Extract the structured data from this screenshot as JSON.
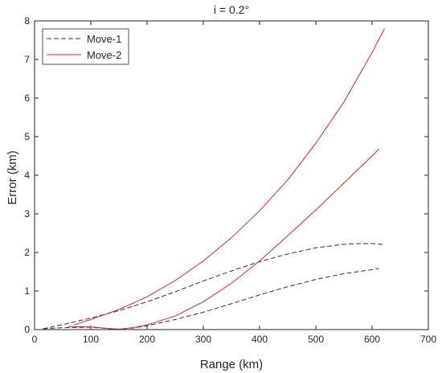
{
  "chart_data": {
    "type": "line",
    "title": "i = 0.2°",
    "xlabel": "Range (km)",
    "ylabel": "Error (km)",
    "xlim": [
      0,
      700
    ],
    "ylim": [
      0,
      8
    ],
    "xticks": [
      0,
      100,
      200,
      300,
      400,
      500,
      600,
      700
    ],
    "yticks": [
      0,
      1,
      2,
      3,
      4,
      5,
      6,
      7,
      8
    ],
    "grid": false,
    "legend_position": "top-left",
    "legend": [
      {
        "label": "Move-1",
        "color": "#333333",
        "style": "dashed"
      },
      {
        "label": "Move-2",
        "color": "#e8211e",
        "style": "solid"
      }
    ],
    "series": [
      {
        "name": "Move-1",
        "group": "upper",
        "color": "#333333",
        "style": "dashed",
        "x": [
          15,
          50,
          100,
          150,
          200,
          250,
          300,
          350,
          400,
          450,
          500,
          550,
          580,
          600,
          622
        ],
        "y": [
          0.02,
          0.13,
          0.3,
          0.49,
          0.72,
          0.98,
          1.26,
          1.52,
          1.76,
          1.96,
          2.12,
          2.21,
          2.23,
          2.23,
          2.2
        ]
      },
      {
        "name": "Move-1",
        "group": "lower",
        "color": "#333333",
        "style": "dashed",
        "x": [
          15,
          50,
          100,
          130,
          150,
          175,
          200,
          250,
          300,
          350,
          400,
          450,
          500,
          550,
          612
        ],
        "y": [
          0.02,
          0.05,
          0.06,
          0.03,
          0.01,
          0.04,
          0.1,
          0.26,
          0.45,
          0.67,
          0.9,
          1.11,
          1.3,
          1.45,
          1.58
        ]
      },
      {
        "name": "Move-2",
        "group": "upper",
        "color": "#e8211e",
        "style": "solid",
        "x": [
          70,
          100,
          150,
          200,
          250,
          300,
          350,
          400,
          450,
          500,
          550,
          600,
          622
        ],
        "y": [
          0.12,
          0.26,
          0.52,
          0.85,
          1.27,
          1.78,
          2.38,
          3.08,
          3.88,
          4.83,
          5.9,
          7.18,
          7.8
        ]
      },
      {
        "name": "Move-2",
        "group": "lower",
        "color": "#e8211e",
        "style": "solid",
        "x": [
          60,
          100,
          130,
          150,
          175,
          200,
          250,
          300,
          350,
          400,
          450,
          500,
          550,
          600,
          612
        ],
        "y": [
          0.08,
          0.07,
          0.03,
          0.01,
          0.05,
          0.12,
          0.35,
          0.72,
          1.2,
          1.78,
          2.43,
          3.1,
          3.8,
          4.5,
          4.68
        ]
      }
    ]
  }
}
